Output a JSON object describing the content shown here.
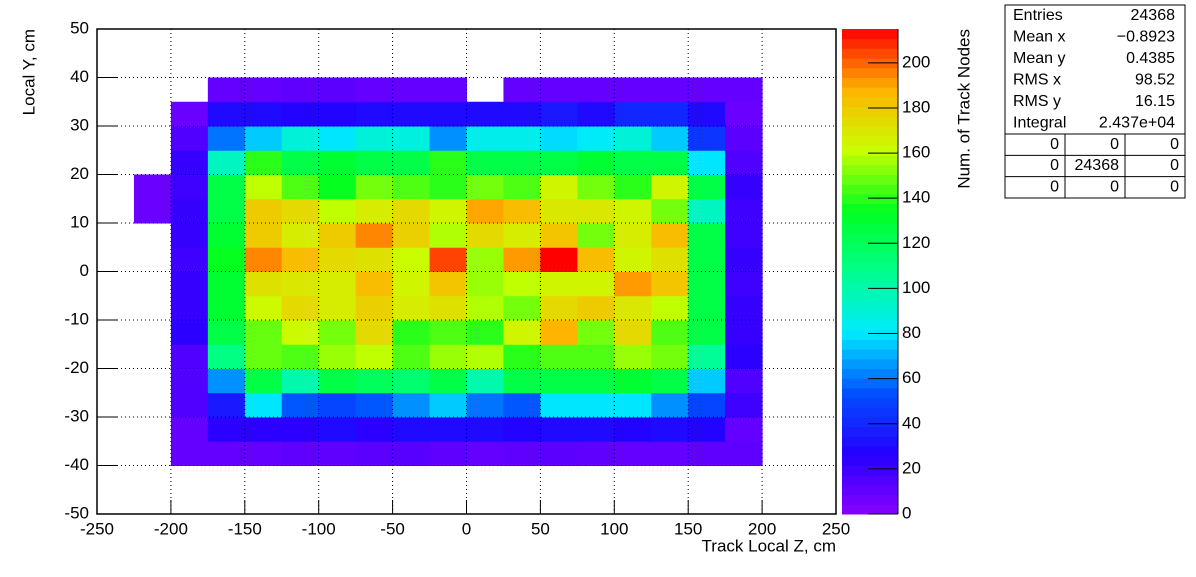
{
  "chart_data": {
    "type": "heatmap",
    "xlabel": "Track Local Z, cm",
    "ylabel": "Local Y, cm",
    "zlabel": "Num. of Track Nodes",
    "xlim": [
      -250,
      250
    ],
    "ylim": [
      -50,
      50
    ],
    "zlim": [
      0,
      215
    ],
    "xticks": [
      -250,
      -200,
      -150,
      -100,
      -50,
      0,
      50,
      100,
      150,
      200,
      250
    ],
    "yticks": [
      -50,
      -40,
      -30,
      -20,
      -10,
      0,
      10,
      20,
      30,
      40,
      50
    ],
    "zticks": [
      0,
      20,
      40,
      60,
      80,
      100,
      120,
      140,
      160,
      180,
      200
    ],
    "grid": true,
    "colors": [
      "#8800ff",
      "#2400ff",
      "#0050ff",
      "#00eaff",
      "#00ff8c",
      "#00ff20",
      "#c8ff00",
      "#ffb400",
      "#ff0000"
    ],
    "xbins": [
      -250,
      -225,
      -200,
      -175,
      -150,
      -125,
      -100,
      -75,
      -50,
      -25,
      0,
      25,
      50,
      75,
      100,
      125,
      150,
      175,
      200,
      225,
      250
    ],
    "ybins": [
      -50,
      -45,
      -40,
      -35,
      -30,
      -25,
      -20,
      -15,
      -10,
      -5,
      0,
      5,
      10,
      15,
      20,
      25,
      30,
      35,
      40,
      45,
      50
    ],
    "z": [
      [
        0,
        0,
        0,
        0,
        0,
        0,
        0,
        0,
        0,
        0,
        0,
        0,
        0,
        0,
        0,
        0,
        0,
        0,
        0,
        0
      ],
      [
        0,
        0,
        0,
        0,
        0,
        0,
        0,
        0,
        0,
        0,
        0,
        0,
        0,
        0,
        0,
        0,
        0,
        0,
        0,
        0
      ],
      [
        0,
        0,
        10,
        10,
        10,
        11,
        11,
        12,
        13,
        11,
        10,
        11,
        12,
        11,
        10,
        10,
        11,
        11,
        0,
        0
      ],
      [
        0,
        0,
        10,
        25,
        25,
        25,
        30,
        25,
        30,
        30,
        30,
        28,
        30,
        30,
        28,
        30,
        28,
        10,
        0,
        0
      ],
      [
        0,
        0,
        15,
        35,
        80,
        55,
        50,
        55,
        65,
        75,
        60,
        55,
        80,
        80,
        80,
        65,
        50,
        20,
        0,
        0
      ],
      [
        0,
        0,
        15,
        65,
        125,
        100,
        125,
        120,
        115,
        125,
        100,
        125,
        125,
        125,
        130,
        125,
        75,
        15,
        0,
        0
      ],
      [
        0,
        0,
        15,
        110,
        148,
        145,
        155,
        160,
        145,
        155,
        158,
        140,
        145,
        145,
        155,
        150,
        105,
        25,
        0,
        0
      ],
      [
        0,
        0,
        25,
        125,
        148,
        163,
        150,
        175,
        140,
        145,
        140,
        165,
        188,
        150,
        175,
        145,
        125,
        22,
        0,
        0
      ],
      [
        0,
        0,
        22,
        130,
        163,
        175,
        168,
        178,
        168,
        172,
        158,
        150,
        175,
        180,
        170,
        160,
        125,
        22,
        0,
        0
      ],
      [
        0,
        0,
        22,
        130,
        172,
        170,
        168,
        185,
        165,
        182,
        155,
        160,
        165,
        165,
        192,
        182,
        125,
        20,
        0,
        0
      ],
      [
        0,
        0,
        20,
        135,
        195,
        185,
        175,
        172,
        162,
        205,
        155,
        192,
        215,
        185,
        165,
        172,
        125,
        22,
        0,
        0
      ],
      [
        0,
        0,
        22,
        130,
        180,
        168,
        180,
        195,
        178,
        158,
        175,
        168,
        182,
        150,
        168,
        185,
        125,
        20,
        0,
        0
      ],
      [
        0,
        8,
        22,
        125,
        180,
        175,
        160,
        168,
        175,
        165,
        190,
        185,
        170,
        170,
        165,
        150,
        95,
        20,
        0,
        0
      ],
      [
        0,
        8,
        20,
        125,
        160,
        145,
        135,
        150,
        145,
        140,
        150,
        145,
        165,
        150,
        140,
        165,
        125,
        22,
        0,
        0
      ],
      [
        0,
        0,
        22,
        95,
        140,
        125,
        130,
        125,
        125,
        140,
        125,
        125,
        125,
        130,
        125,
        125,
        80,
        15,
        0,
        0
      ],
      [
        0,
        0,
        15,
        60,
        75,
        90,
        80,
        90,
        88,
        65,
        85,
        85,
        78,
        82,
        90,
        75,
        45,
        12,
        0,
        0
      ],
      [
        0,
        0,
        8,
        30,
        30,
        28,
        28,
        30,
        30,
        30,
        30,
        30,
        35,
        30,
        40,
        40,
        30,
        8,
        0,
        0
      ],
      [
        0,
        0,
        0,
        10,
        10,
        11,
        12,
        10,
        10,
        10,
        0,
        10,
        10,
        10,
        10,
        10,
        10,
        10,
        0,
        0
      ],
      [
        0,
        0,
        0,
        0,
        0,
        0,
        0,
        0,
        0,
        0,
        0,
        0,
        0,
        0,
        0,
        0,
        0,
        0,
        0,
        0
      ],
      [
        0,
        0,
        0,
        0,
        0,
        0,
        0,
        0,
        0,
        0,
        0,
        0,
        0,
        0,
        0,
        0,
        0,
        0,
        0,
        0
      ]
    ]
  },
  "stats": {
    "rows": [
      [
        "Entries",
        "24368"
      ],
      [
        "Mean x",
        "−0.8923"
      ],
      [
        "Mean y",
        "0.4385"
      ],
      [
        "RMS x",
        "98.52"
      ],
      [
        "RMS y",
        "16.15"
      ],
      [
        "Integral",
        "2.437e+04"
      ]
    ],
    "overflow": [
      [
        "0",
        "0",
        "0"
      ],
      [
        "0",
        "24368",
        "0"
      ],
      [
        "0",
        "0",
        "0"
      ]
    ]
  }
}
